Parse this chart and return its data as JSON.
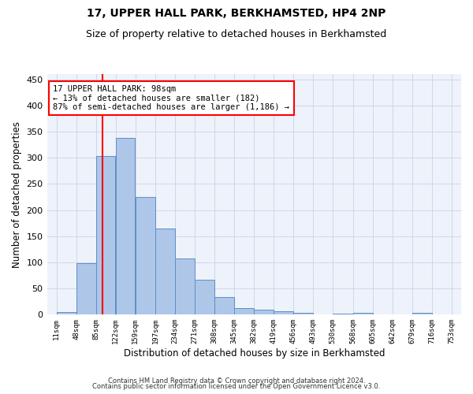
{
  "title": "17, UPPER HALL PARK, BERKHAMSTED, HP4 2NP",
  "subtitle": "Size of property relative to detached houses in Berkhamsted",
  "xlabel": "Distribution of detached houses by size in Berkhamsted",
  "ylabel": "Number of detached properties",
  "bar_vals": [
    5,
    98,
    304,
    338,
    225,
    165,
    108,
    67,
    33,
    12,
    10,
    6,
    4,
    0,
    2,
    4,
    0,
    0,
    4,
    0
  ],
  "all_edges": [
    11,
    48,
    85,
    122,
    159,
    197,
    234,
    271,
    308,
    345,
    382,
    419,
    456,
    493,
    530,
    568,
    605,
    642,
    679,
    716,
    753
  ],
  "bar_color": "#aec6e8",
  "bar_edge_color": "#5b8fc9",
  "vline_x": 98,
  "vline_color": "red",
  "annotation_line1": "17 UPPER HALL PARK: 98sqm",
  "annotation_line2": "← 13% of detached houses are smaller (182)",
  "annotation_line3": "87% of semi-detached houses are larger (1,186) →",
  "annotation_box_edgecolor": "red",
  "annotation_box_facecolor": "white",
  "ylim": [
    0,
    460
  ],
  "yticks": [
    0,
    50,
    100,
    150,
    200,
    250,
    300,
    350,
    400,
    450
  ],
  "grid_color": "#c8d4e8",
  "bg_color": "#eef2fa",
  "title_fontsize": 10,
  "subtitle_fontsize": 9,
  "footer_line1": "Contains HM Land Registry data © Crown copyright and database right 2024.",
  "footer_line2": "Contains public sector information licensed under the Open Government Licence v3.0."
}
